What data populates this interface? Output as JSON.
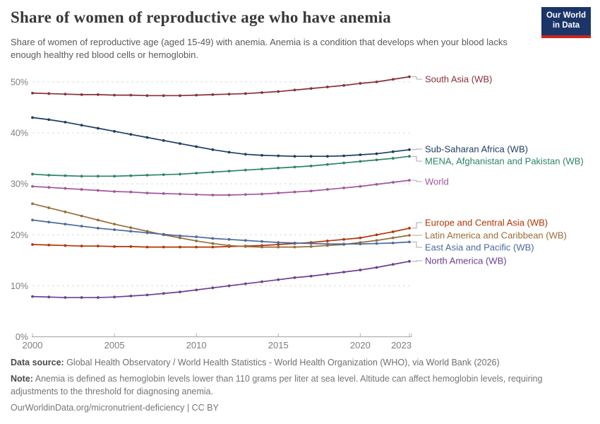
{
  "header": {
    "title": "Share of women of reproductive age who have anemia",
    "subtitle": "Share of women of reproductive age (aged 15-49) with anemia. Anemia is a condition that develops when your blood lacks enough healthy red blood cells or hemoglobin."
  },
  "logo": {
    "line1": "Our World",
    "line2": "in Data",
    "bg_color": "#1B3568",
    "bar_color": "#CE2621"
  },
  "chart_data": {
    "type": "line",
    "title": "Share of women of reproductive age who have anemia",
    "xlabel": "",
    "ylabel": "",
    "unit": "%",
    "grid": true,
    "legend_position": "right-of-line-ends",
    "ylim": [
      0,
      55
    ],
    "x_ticks": [
      2000,
      2005,
      2010,
      2015,
      2020,
      2023
    ],
    "y_ticks": [
      0,
      10,
      20,
      30,
      40,
      50
    ],
    "x": [
      2000,
      2001,
      2002,
      2003,
      2004,
      2005,
      2006,
      2007,
      2008,
      2009,
      2010,
      2011,
      2012,
      2013,
      2014,
      2015,
      2016,
      2017,
      2018,
      2019,
      2020,
      2021,
      2022,
      2023
    ],
    "series": [
      {
        "name": "South Asia (WB)",
        "color": "#883039",
        "values": [
          47.8,
          47.7,
          47.6,
          47.5,
          47.5,
          47.4,
          47.4,
          47.3,
          47.3,
          47.3,
          47.4,
          47.5,
          47.6,
          47.7,
          47.9,
          48.1,
          48.4,
          48.7,
          49.0,
          49.3,
          49.7,
          50.0,
          50.5,
          51.0
        ]
      },
      {
        "name": "Sub-Saharan Africa (WB)",
        "color": "#1D3D63",
        "values": [
          43.0,
          42.6,
          42.1,
          41.5,
          40.9,
          40.3,
          39.7,
          39.1,
          38.5,
          37.9,
          37.3,
          36.7,
          36.2,
          35.8,
          35.6,
          35.5,
          35.4,
          35.4,
          35.4,
          35.5,
          35.7,
          35.9,
          36.3,
          36.7
        ]
      },
      {
        "name": "MENA, Afghanistan and Pakistan (WB)",
        "color": "#2C8465",
        "values": [
          31.9,
          31.7,
          31.6,
          31.5,
          31.5,
          31.5,
          31.6,
          31.7,
          31.8,
          31.9,
          32.1,
          32.3,
          32.5,
          32.7,
          32.9,
          33.1,
          33.3,
          33.5,
          33.8,
          34.1,
          34.4,
          34.7,
          35.0,
          35.4
        ]
      },
      {
        "name": "World",
        "color": "#A2559C",
        "values": [
          29.5,
          29.3,
          29.1,
          28.9,
          28.7,
          28.5,
          28.4,
          28.2,
          28.1,
          28.0,
          27.9,
          27.8,
          27.8,
          27.9,
          28.0,
          28.2,
          28.4,
          28.6,
          28.9,
          29.2,
          29.5,
          29.9,
          30.3,
          30.7
        ]
      },
      {
        "name": "Europe and Central Asia (WB)",
        "color": "#B13507",
        "values": [
          18.1,
          18.0,
          17.9,
          17.8,
          17.8,
          17.7,
          17.7,
          17.6,
          17.6,
          17.6,
          17.6,
          17.6,
          17.7,
          17.8,
          17.9,
          18.1,
          18.3,
          18.5,
          18.8,
          19.1,
          19.4,
          20.0,
          20.6,
          21.3
        ]
      },
      {
        "name": "Latin America and Caribbean (WB)",
        "color": "#996D39",
        "values": [
          26.1,
          25.3,
          24.5,
          23.7,
          22.9,
          22.1,
          21.4,
          20.7,
          20.0,
          19.4,
          18.8,
          18.3,
          17.9,
          17.7,
          17.6,
          17.6,
          17.6,
          17.7,
          17.9,
          18.1,
          18.5,
          18.9,
          19.4,
          19.9
        ]
      },
      {
        "name": "East Asia and Pacific (WB)",
        "color": "#4C6A9C",
        "values": [
          22.9,
          22.5,
          22.1,
          21.7,
          21.3,
          21.0,
          20.7,
          20.4,
          20.1,
          19.8,
          19.6,
          19.3,
          19.1,
          18.9,
          18.7,
          18.5,
          18.4,
          18.3,
          18.2,
          18.2,
          18.2,
          18.3,
          18.4,
          18.6
        ]
      },
      {
        "name": "North America (WB)",
        "color": "#6D3E91",
        "values": [
          7.9,
          7.8,
          7.7,
          7.7,
          7.7,
          7.8,
          8.0,
          8.2,
          8.5,
          8.8,
          9.2,
          9.6,
          10.0,
          10.4,
          10.8,
          11.2,
          11.6,
          11.9,
          12.3,
          12.7,
          13.1,
          13.6,
          14.2,
          14.8
        ]
      }
    ],
    "style": {
      "grid": "#dcdcdc",
      "axis": "#9e9e9e",
      "axis_tick": "#b3b3b3",
      "tick_label": "#7d7d7d",
      "connector": "#a8a8a8"
    }
  },
  "footer": {
    "source_label": "Data source:",
    "source_text": " Global Health Observatory / World Health Statistics - World Health Organization (WHO), via World Bank (2026)",
    "note_label": "Note:",
    "note_text": " Anemia is defined as hemoglobin levels lower than 110 grams per liter at sea level. Altitude can affect hemoglobin levels, requiring adjustments to the threshold for diagnosing anemia.",
    "link": "OurWorldinData.org/micronutrient-deficiency | CC BY"
  }
}
